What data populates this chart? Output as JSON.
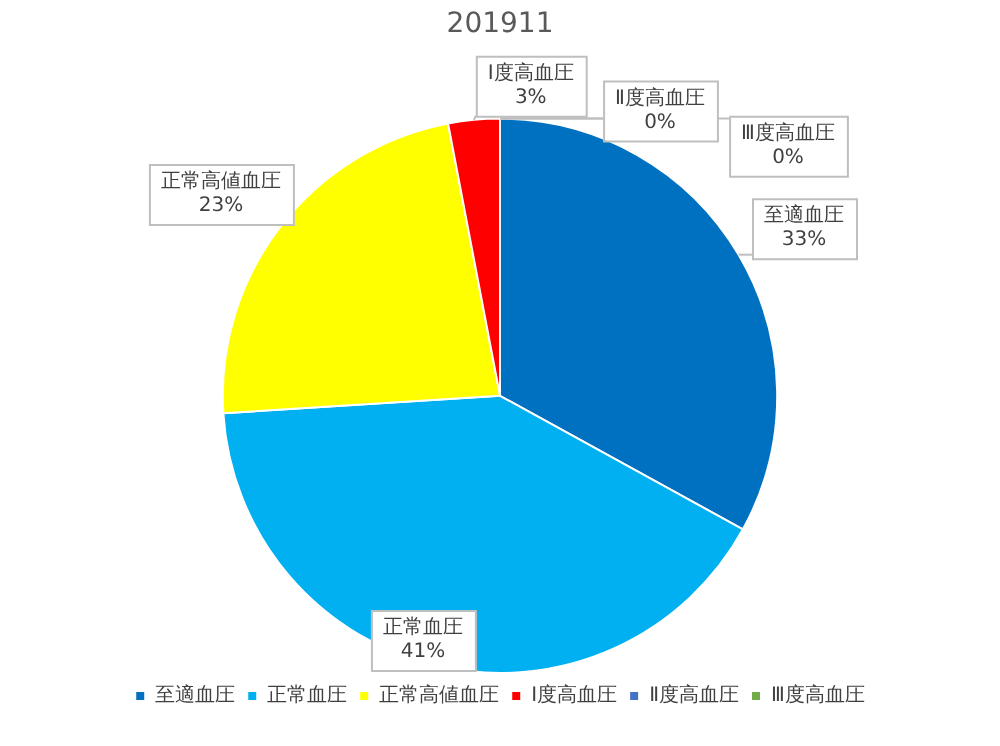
{
  "chart_data": {
    "type": "pie",
    "title": "201911",
    "categories": [
      "至適血圧",
      "正常血圧",
      "正常高値血圧",
      "Ⅰ度高血圧",
      "Ⅱ度高血圧",
      "Ⅲ度高血圧"
    ],
    "values": [
      33,
      41,
      23,
      3,
      0,
      0
    ],
    "value_labels": [
      "33%",
      "41%",
      "23%",
      "3%",
      "0%",
      "0%"
    ],
    "colors": [
      "#0070c0",
      "#00b0f0",
      "#ffff00",
      "#ff0000",
      "#4472c4",
      "#70ad47"
    ],
    "legend": "bottom"
  }
}
